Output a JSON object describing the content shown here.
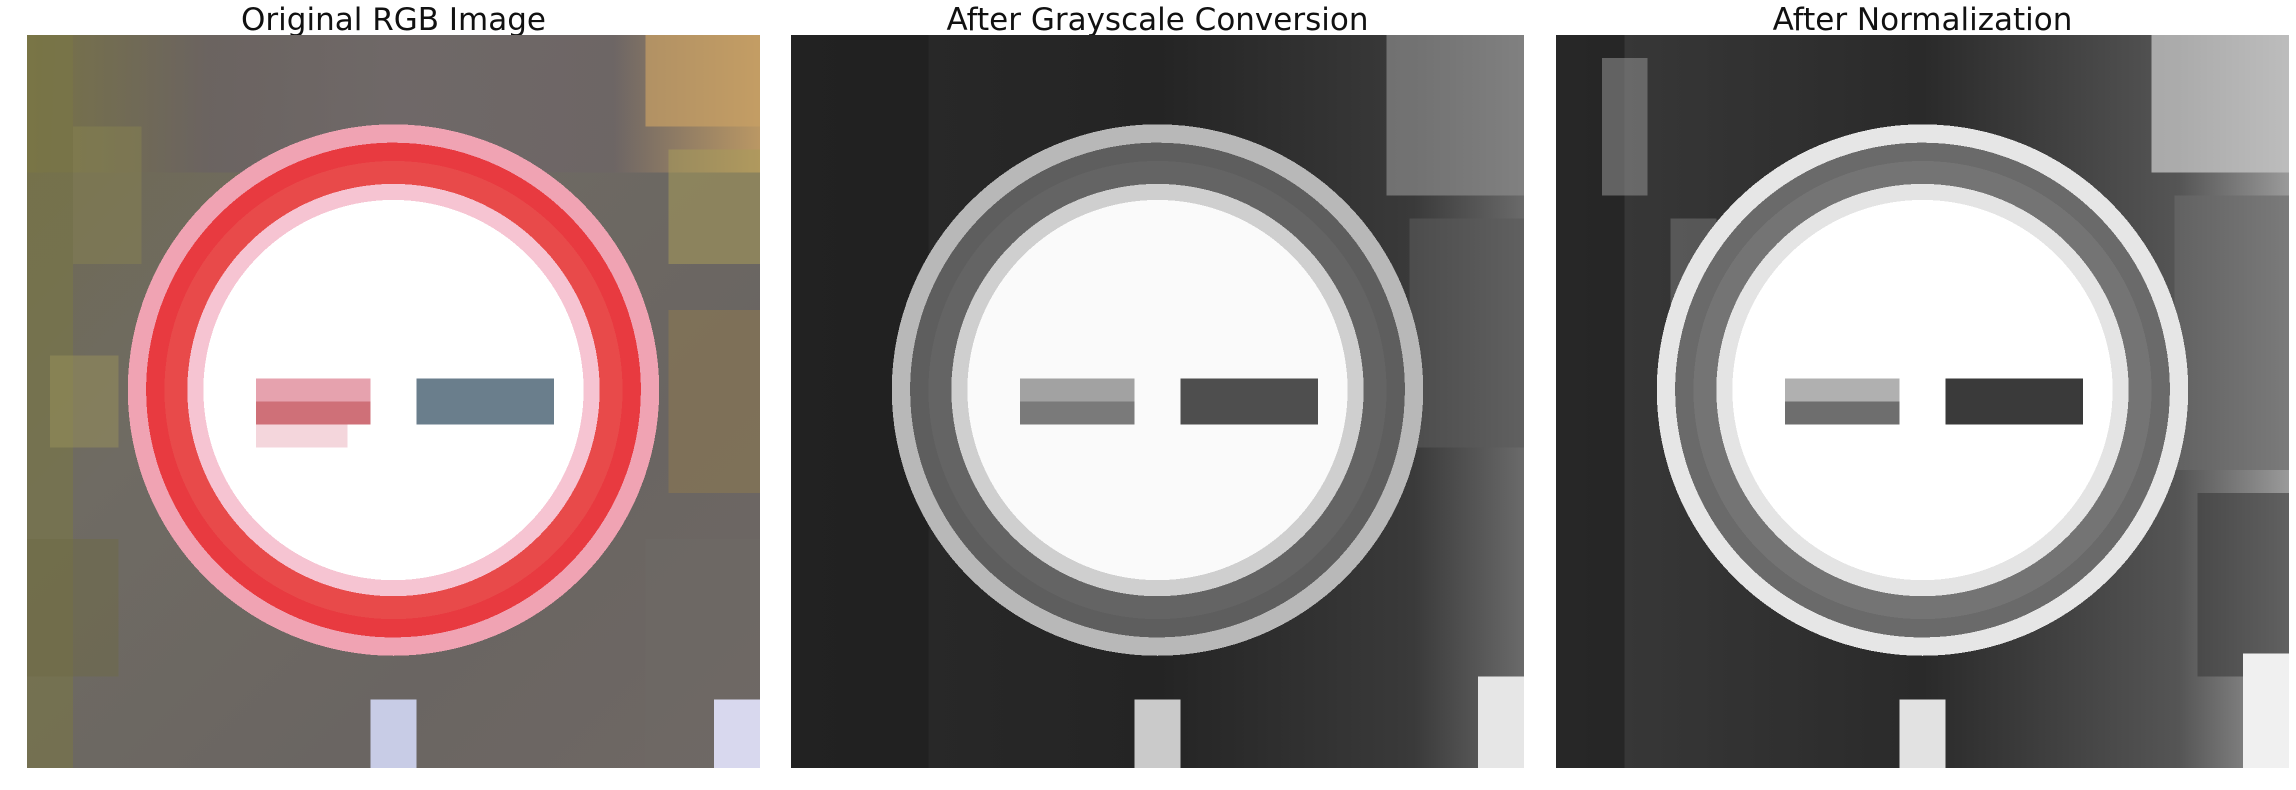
{
  "panels": [
    {
      "title": "Original RGB Image",
      "image": "traffic-sign-no-entry-rgb"
    },
    {
      "title": "After Grayscale Conversion",
      "image": "traffic-sign-no-entry-grayscale"
    },
    {
      "title": "After Normalization",
      "image": "traffic-sign-no-entry-normalized"
    }
  ],
  "colors": {
    "ring_red": "#e83a40",
    "ring_pink": "#f1a0b0",
    "bar_left": "#cf7078",
    "bar_right": "#6a7e8c",
    "sign_white": "#ffffff"
  }
}
